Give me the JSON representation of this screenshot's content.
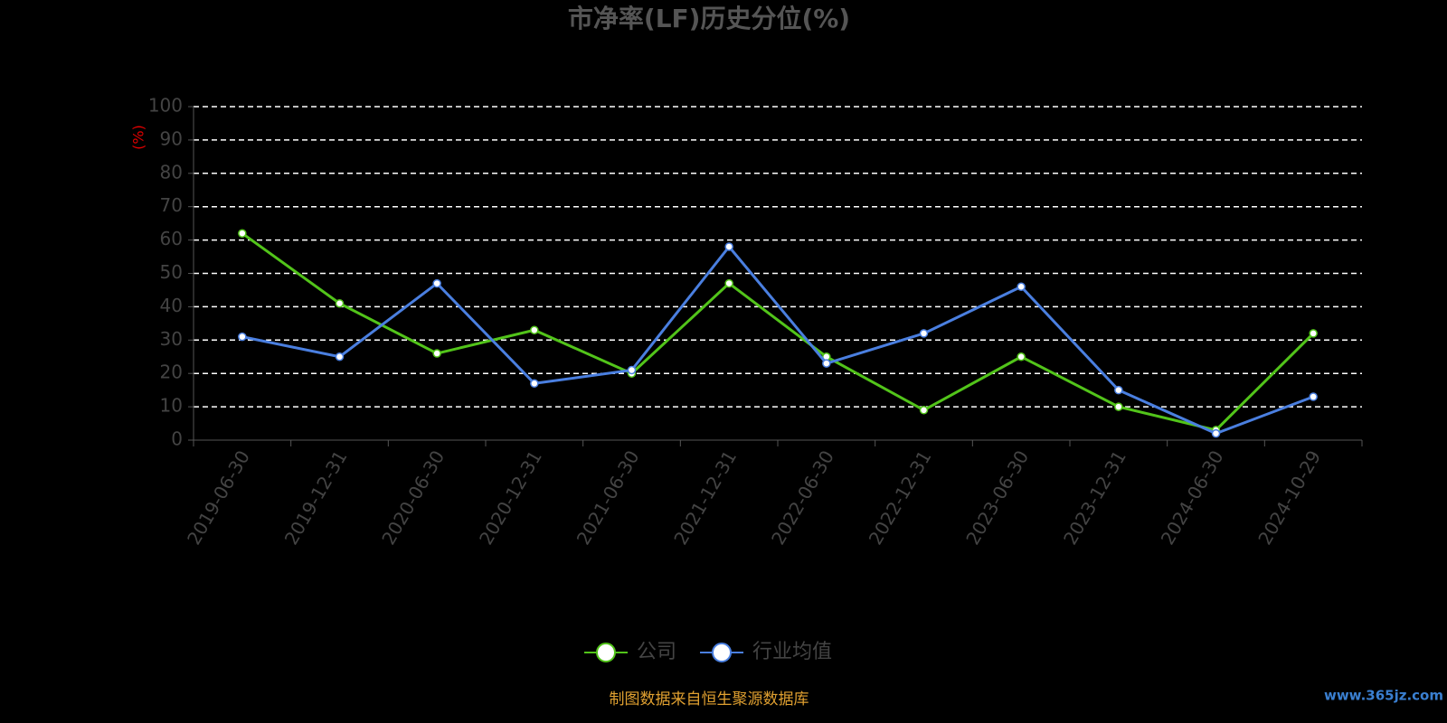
{
  "chart_data": {
    "type": "line",
    "title": "市净率(LF)历史分位(%)",
    "y_axis_label": "(%)",
    "categories": [
      "2019-06-30",
      "2019-12-31",
      "2020-06-30",
      "2020-12-31",
      "2021-06-30",
      "2021-12-31",
      "2022-06-30",
      "2022-12-31",
      "2023-06-30",
      "2023-12-31",
      "2024-06-30",
      "2024-10-29"
    ],
    "series": [
      {
        "name": "公司",
        "color": "#52c41a",
        "values": [
          62,
          41,
          26,
          33,
          20,
          47,
          25,
          9,
          25,
          10,
          3,
          32
        ]
      },
      {
        "name": "行业均值",
        "color": "#4a7fe0",
        "values": [
          31,
          25,
          47,
          17,
          21,
          58,
          23,
          32,
          46,
          15,
          2,
          13
        ]
      }
    ],
    "ylim": [
      0,
      100
    ],
    "yticks": [
      0,
      10,
      20,
      30,
      40,
      50,
      60,
      70,
      80,
      90,
      100
    ],
    "grid": true,
    "legend": "bottom",
    "source": "制图数据来自恒生聚源数据库",
    "watermark": "www.365jz.com"
  }
}
